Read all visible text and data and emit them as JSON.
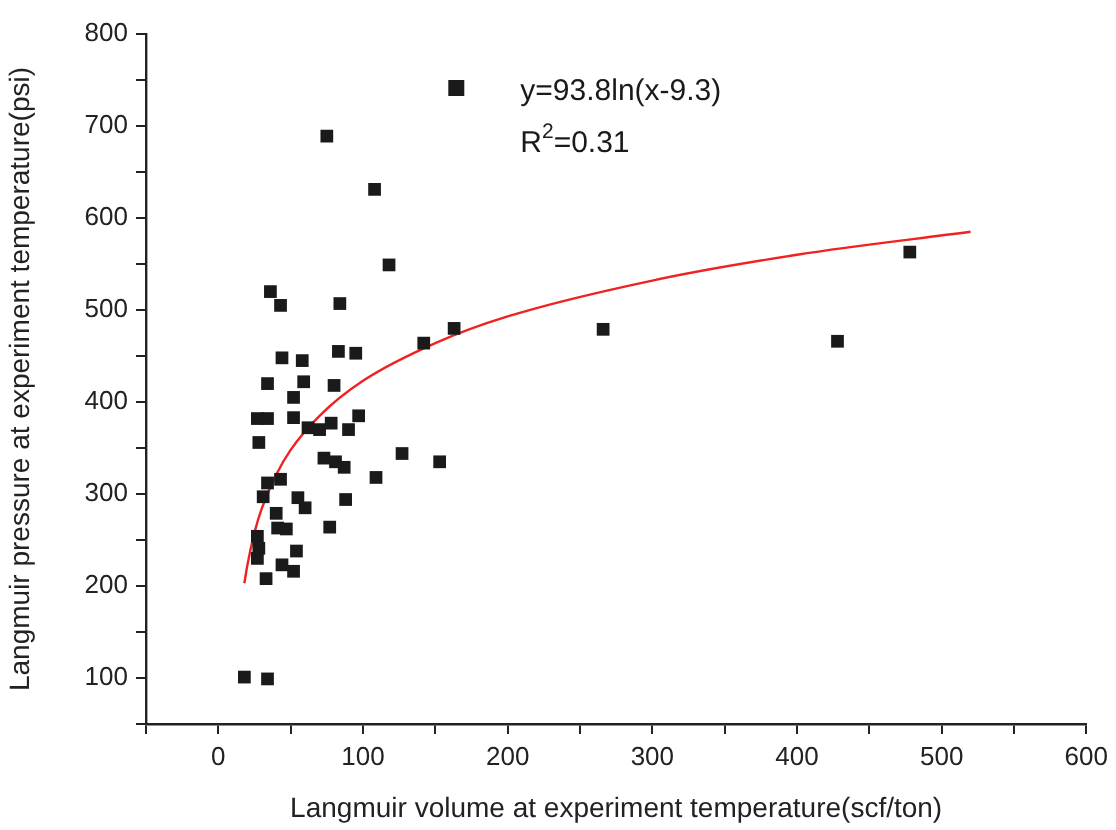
{
  "chart_data": {
    "type": "scatter",
    "xlabel": "Langmuir volume at experiment temperature(scf/ton)",
    "ylabel": "Langmuir pressure at experiment temperature(psi)",
    "xlim": [
      -50,
      600
    ],
    "ylim": [
      50,
      800
    ],
    "xticks": [
      {
        "value": -50,
        "label": null
      },
      0,
      {
        "value": 50,
        "label": null
      },
      100,
      {
        "value": 150,
        "label": null
      },
      200,
      {
        "value": 250,
        "label": null
      },
      300,
      {
        "value": 350,
        "label": null
      },
      400,
      {
        "value": 450,
        "label": null
      },
      500,
      {
        "value": 550,
        "label": null
      },
      600
    ],
    "yticks": [
      {
        "value": 50,
        "label": null
      },
      100,
      {
        "value": 150,
        "label": null
      },
      200,
      {
        "value": 250,
        "label": null
      },
      300,
      {
        "value": 350,
        "label": null
      },
      400,
      {
        "value": 450,
        "label": null
      },
      500,
      {
        "value": 550,
        "label": null
      },
      600,
      {
        "value": 650,
        "label": null
      },
      700,
      {
        "value": 750,
        "label": null
      },
      800
    ],
    "grid": false,
    "legend": "top right",
    "marker": "square",
    "annotations": [
      "R$^{2}$=0.31"
    ],
    "series": [
      {
        "name": "y=93.8ln(x-9.3)",
        "color": "#1a1a1a",
        "x": [
          118,
          36,
          43,
          84,
          163,
          142,
          44,
          58,
          83,
          95,
          34,
          59,
          80,
          52,
          27,
          34,
          52,
          62,
          70,
          78,
          90,
          97,
          28,
          127,
          153,
          73,
          81,
          87,
          109,
          34,
          43,
          31,
          55,
          60,
          88,
          40,
          41,
          47,
          77,
          27,
          28,
          54,
          27,
          44,
          52,
          33,
          18,
          34,
          75,
          108,
          266,
          428,
          478
        ],
        "values": [
          549,
          520,
          505,
          507,
          480,
          464,
          448,
          445,
          455,
          453,
          420,
          422,
          418,
          405,
          382,
          382,
          383,
          372,
          370,
          377,
          370,
          385,
          356,
          344,
          335,
          339,
          335,
          329,
          318,
          312,
          316,
          297,
          296,
          285,
          294,
          279,
          263,
          262,
          264,
          254,
          241,
          238,
          230,
          223,
          216,
          208,
          101,
          99,
          689,
          631,
          479,
          466,
          563
        ]
      },
      {
        "type": "line",
        "color": "#ee2222",
        "marker": "none",
        "x": [
          18,
          20,
          25,
          30,
          40,
          50,
          70,
          100,
          150,
          200,
          300,
          400,
          520
        ],
        "values": [
          203,
          222,
          258,
          284,
          321,
          348,
          385,
          423,
          464,
          493,
          532,
          560,
          585
        ]
      }
    ]
  }
}
